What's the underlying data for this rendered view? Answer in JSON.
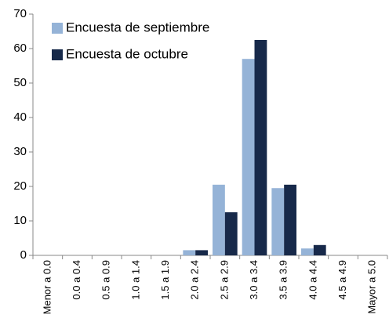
{
  "chart_data": {
    "type": "bar",
    "categories": [
      "Menor a 0.0",
      "0.0 a 0.4",
      "0.5 a 0.9",
      "1.0 a 1.4",
      "1.5 a 1.9",
      "2.0 a 2.4",
      "2.5 a 2.9",
      "3.0 a 3.4",
      "3.5 a 3.9",
      "4.0 a 4.4",
      "4.5 a 4.9",
      "Mayor a 5.0"
    ],
    "series": [
      {
        "name": "Encuesta de septiembre",
        "color": "#95b3d7",
        "values": [
          0,
          0,
          0,
          0,
          0,
          1.5,
          20.5,
          57,
          19.5,
          2,
          0,
          0
        ]
      },
      {
        "name": "Encuesta de octubre",
        "color": "#17294a",
        "values": [
          0,
          0,
          0,
          0,
          0,
          1.5,
          12.5,
          62.5,
          20.5,
          3,
          0,
          0
        ]
      }
    ],
    "ylim": [
      0,
      70
    ],
    "yticks": [
      0,
      10,
      20,
      30,
      40,
      50,
      60,
      70
    ],
    "grid": false,
    "legend": "top-left"
  }
}
